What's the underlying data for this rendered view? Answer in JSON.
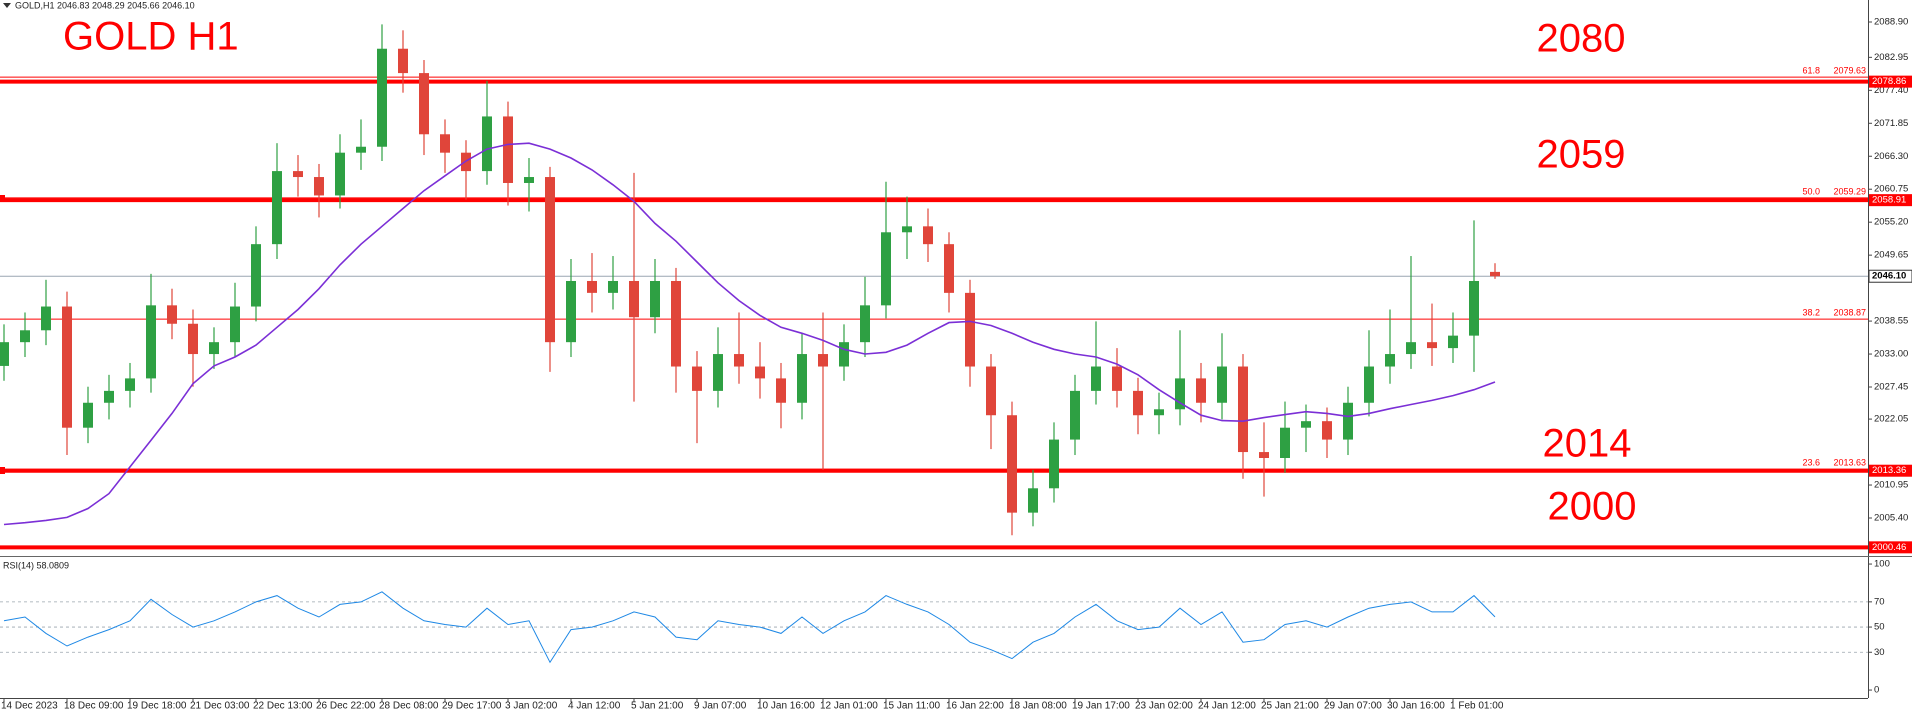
{
  "header": "GOLD,H1  2046.83 2048.29 2045.66 2046.10",
  "chart_data": [
    {
      "type": "candlestick",
      "title": "GOLD H1",
      "annotations": [
        "2080",
        "2059",
        "2014",
        "2000"
      ],
      "categories": [
        "14 Dec 2023",
        null,
        null,
        "18 Dec 09:00",
        null,
        null,
        "19 Dec 18:00",
        null,
        null,
        "21 Dec 03:00",
        null,
        null,
        "22 Dec 13:00",
        null,
        null,
        "26 Dec 22:00",
        null,
        null,
        "28 Dec 08:00",
        null,
        null,
        "29 Dec 17:00",
        null,
        null,
        "3 Jan 02:00",
        null,
        null,
        "4 Jan 12:00",
        null,
        null,
        "5 Jan 21:00",
        null,
        null,
        "9 Jan 07:00",
        null,
        null,
        "10 Jan 16:00",
        null,
        null,
        "12 Jan 01:00",
        null,
        null,
        "15 Jan 11:00",
        null,
        null,
        "16 Jan 22:00",
        null,
        null,
        "18 Jan 08:00",
        null,
        null,
        "19 Jan 17:00",
        null,
        null,
        "23 Jan 02:00",
        null,
        null,
        "24 Jan 12:00",
        null,
        null,
        "25 Jan 21:00",
        null,
        null,
        "29 Jan 07:00",
        null,
        null,
        "30 Jan 16:00",
        null,
        null,
        "1 Feb 01:00",
        null,
        null
      ],
      "open": [
        2031,
        2035,
        2037,
        2041,
        2020.6,
        2024.8,
        2026.8,
        2028.9,
        2041.2,
        2038.1,
        2033,
        2035,
        2041,
        2051.5,
        2063.8,
        2062.8,
        2059.7,
        2066.9,
        2067.9,
        2084.4,
        2080.3,
        2070,
        2066.9,
        2063.8,
        2073,
        2061.8,
        2062.8,
        2035,
        2045.3,
        2043.3,
        2045.3,
        2039.2,
        2045.3,
        2030.9,
        2026.8,
        2033,
        2030.9,
        2028.9,
        2024.8,
        2033,
        2030.9,
        2035,
        2041.2,
        2053.5,
        2054.5,
        2051.5,
        2043.3,
        2030.9,
        2022.7,
        2006.3,
        2010.4,
        2018.6,
        2026.8,
        2030.9,
        2026.8,
        2022.7,
        2023.7,
        2028.9,
        2024.8,
        2030.9,
        2016.5,
        2015.5,
        2020.6,
        2021.7,
        2018.6,
        2024.8,
        2030.9,
        2033,
        2035,
        2034,
        2036.1,
        2046.83
      ],
      "high": [
        2038,
        2040,
        2045.5,
        2043.5,
        2027.5,
        2029.5,
        2031.5,
        2046.5,
        2044,
        2040.5,
        2037.5,
        2045,
        2054.5,
        2068.5,
        2066.5,
        2065,
        2070,
        2072.5,
        2088.5,
        2087.5,
        2082.5,
        2072.5,
        2069,
        2079,
        2075.5,
        2066,
        2064.5,
        2049,
        2050,
        2049.5,
        2063.5,
        2049,
        2047.5,
        2033.5,
        2037.5,
        2040,
        2035,
        2031.5,
        2036.5,
        2040,
        2038,
        2046,
        2062,
        2059.5,
        2057.5,
        2053.5,
        2045.5,
        2033,
        2025,
        2013.5,
        2021.5,
        2029.5,
        2038.5,
        2034,
        2029,
        2026.5,
        2037,
        2031.5,
        2036.5,
        2033,
        2021.5,
        2025,
        2024.5,
        2024,
        2027.5,
        2037,
        2040.5,
        2049.5,
        2041.5,
        2040,
        2055.5,
        2048.29
      ],
      "low": [
        2028.5,
        2032.5,
        2034.5,
        2016,
        2018,
        2022,
        2024,
        2026.5,
        2035.5,
        2027.5,
        2030.5,
        2032.5,
        2038.5,
        2049,
        2059.5,
        2056,
        2057.5,
        2064,
        2065.5,
        2077,
        2066.5,
        2063.5,
        2059,
        2061.5,
        2058,
        2057,
        2030,
        2032.5,
        2040,
        2040.5,
        2025,
        2036.5,
        2026.5,
        2018,
        2024,
        2028,
        2025.5,
        2020.5,
        2022,
        2013.5,
        2028.5,
        2032.5,
        2039,
        2049,
        2048.5,
        2040,
        2027.5,
        2017,
        2002.5,
        2004,
        2008,
        2016,
        2024.5,
        2024,
        2019.5,
        2019.5,
        2021,
        2021.5,
        2022,
        2012,
        2009,
        2013,
        2016.5,
        2015.5,
        2016,
        2022.5,
        2028,
        2030.5,
        2031,
        2031.5,
        2030,
        2045.66
      ],
      "close": [
        2035,
        2037,
        2041,
        2020.6,
        2024.8,
        2026.8,
        2028.9,
        2041.2,
        2038.1,
        2033,
        2035,
        2041,
        2051.5,
        2063.8,
        2062.8,
        2059.7,
        2066.9,
        2067.9,
        2084.4,
        2080.3,
        2070,
        2066.9,
        2063.8,
        2073,
        2061.8,
        2062.8,
        2035,
        2045.3,
        2043.3,
        2045.3,
        2039.2,
        2045.3,
        2030.9,
        2026.8,
        2033,
        2030.9,
        2028.9,
        2024.8,
        2033,
        2030.9,
        2035,
        2041.2,
        2053.5,
        2054.5,
        2051.5,
        2043.3,
        2030.9,
        2022.7,
        2006.3,
        2010.4,
        2018.6,
        2026.8,
        2030.9,
        2026.8,
        2022.7,
        2023.7,
        2028.9,
        2024.8,
        2030.9,
        2016.5,
        2015.5,
        2020.6,
        2021.7,
        2018.6,
        2024.8,
        2030.9,
        2033,
        2035,
        2034,
        2036.1,
        2045.3,
        2046.1
      ],
      "up_color": "#2ea043",
      "down_color": "#e0453a",
      "overlays": [
        {
          "type": "line",
          "color": "#7b2fd6",
          "values": [
            2004.3,
            2004.6,
            2005,
            2005.5,
            2007,
            2009.5,
            2014,
            2018.5,
            2023,
            2028,
            2031,
            2032.5,
            2034.5,
            2037.5,
            2040.5,
            2044,
            2048,
            2051.5,
            2054.5,
            2057.5,
            2060.5,
            2063,
            2065.5,
            2067.5,
            2068.3,
            2068.5,
            2067.5,
            2066,
            2064,
            2061.5,
            2058.7,
            2055,
            2052,
            2048.5,
            2045,
            2042,
            2039.5,
            2037.5,
            2036.5,
            2035.3,
            2033.8,
            2033,
            2033.3,
            2034.5,
            2036.5,
            2038.3,
            2038.5,
            2037.8,
            2036.5,
            2035,
            2033.8,
            2033,
            2032.5,
            2031.3,
            2029.5,
            2027,
            2024.8,
            2022.7,
            2021.8,
            2021.7,
            2022.3,
            2022.8,
            2023.3,
            2023,
            2022.5,
            2023,
            2023.8,
            2024.5,
            2025.2,
            2026,
            2027,
            2028.3
          ]
        }
      ],
      "sr_levels": [
        2078.86,
        2058.91,
        2013.36,
        2000.46
      ],
      "level_color": "#ff0000",
      "fib_levels": [
        {
          "ratio": "61.8",
          "price": 2079.63
        },
        {
          "ratio": "50.0",
          "price": 2059.29
        },
        {
          "ratio": "38.2",
          "price": 2038.87
        },
        {
          "ratio": "23.6",
          "price": 2013.63
        }
      ],
      "current_price": {
        "value": 2046.1,
        "label": "2046.10"
      },
      "current_color": "#9aa6b2",
      "ylim": [
        1999.17,
        2090.92
      ],
      "yticks": [
        {
          "value": 2088.9,
          "label": "2088.90"
        },
        2082.95,
        {
          "value": 2077.4,
          "label": "2077.40"
        },
        2071.85,
        {
          "value": 2066.3,
          "label": "2066.30"
        },
        2060.75,
        {
          "value": 2055.2,
          "label": "2055.20"
        },
        2049.65,
        2038.55,
        {
          "value": 2033,
          "label": "2033.00"
        },
        2027.45,
        2022.05,
        2010.95,
        {
          "value": 2005.4,
          "label": "2005.40"
        }
      ]
    },
    {
      "type": "line",
      "title": "RSI(14) 58.0809",
      "color": "#1e88e5",
      "values": [
        55,
        58,
        45,
        35,
        42,
        48,
        55,
        72,
        60,
        50,
        55,
        62,
        70,
        75,
        65,
        58,
        68,
        70,
        78,
        65,
        55,
        52,
        50,
        65,
        52,
        55,
        22,
        48,
        50,
        55,
        62,
        58,
        42,
        40,
        55,
        52,
        50,
        45,
        58,
        45,
        55,
        62,
        75,
        68,
        62,
        52,
        38,
        32,
        25,
        38,
        45,
        58,
        68,
        55,
        48,
        50,
        65,
        52,
        62,
        38,
        40,
        52,
        55,
        50,
        58,
        65,
        68,
        70,
        62,
        62,
        75,
        58.08
      ],
      "ylim": [
        -6.3,
        104.8
      ],
      "yticks": [
        100,
        70,
        50,
        30,
        0
      ],
      "grid": true
    }
  ]
}
